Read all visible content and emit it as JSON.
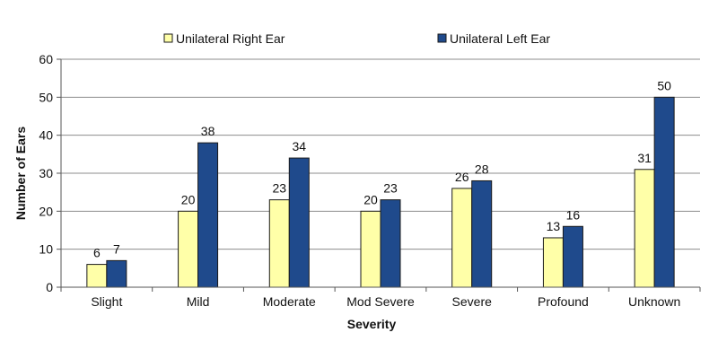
{
  "chart_data": {
    "type": "bar",
    "title": "",
    "xlabel": "Severity",
    "ylabel": "Number of Ears",
    "ylim": [
      0,
      60
    ],
    "yticks": [
      0,
      10,
      20,
      30,
      40,
      50,
      60
    ],
    "grid": true,
    "legend_position": "top",
    "categories": [
      "Slight",
      "Mild",
      "Moderate",
      "Mod Severe",
      "Severe",
      "Profound",
      "Unknown"
    ],
    "series": [
      {
        "name": "Unilateral Right Ear",
        "color": "#ffffa8",
        "values": [
          6,
          20,
          23,
          20,
          26,
          13,
          31
        ]
      },
      {
        "name": "Unilateral Left Ear",
        "color": "#1f4a8c",
        "values": [
          7,
          38,
          34,
          23,
          28,
          16,
          50
        ]
      }
    ]
  }
}
